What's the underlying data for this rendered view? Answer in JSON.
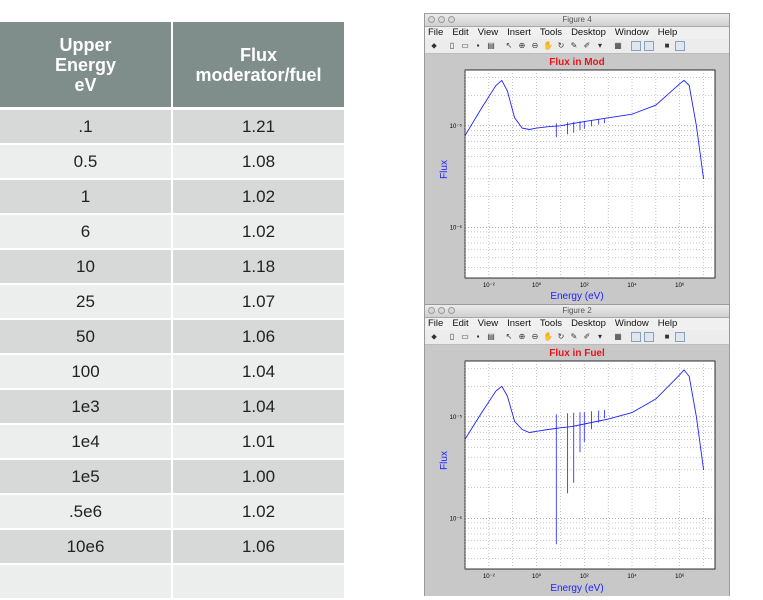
{
  "table": {
    "headers": [
      "Upper\nEnergy\neV",
      "Flux\nmoderator/fuel"
    ],
    "rows": [
      [
        ".1",
        "1.21"
      ],
      [
        "0.5",
        "1.08"
      ],
      [
        "1",
        "1.02"
      ],
      [
        "6",
        "1.02"
      ],
      [
        "10",
        "1.18"
      ],
      [
        "25",
        "1.07"
      ],
      [
        "50",
        "1.06"
      ],
      [
        "100",
        "1.04"
      ],
      [
        "1e3",
        "1.04"
      ],
      [
        "1e4",
        "1.01"
      ],
      [
        "1e5",
        "1.00"
      ],
      [
        ".5e6",
        "1.02"
      ],
      [
        "10e6",
        "1.06"
      ],
      [
        "",
        ""
      ]
    ]
  },
  "figure_top": {
    "window_title": "Figure 4",
    "menu": [
      "File",
      "Edit",
      "View",
      "Insert",
      "Tools",
      "Desktop",
      "Window",
      "Help"
    ],
    "plot_title": "Flux in Mod",
    "ylabel": "Flux",
    "xlabel": "Energy (eV)",
    "yticks": [
      "10⁻⁵",
      "10⁻⁶"
    ],
    "xticks": [
      "10⁻²",
      "10⁰",
      "10²",
      "10⁴",
      "10⁶"
    ]
  },
  "figure_bottom": {
    "window_title": "Figure 2",
    "menu": [
      "File",
      "Edit",
      "View",
      "Insert",
      "Tools",
      "Desktop",
      "Window",
      "Help"
    ],
    "plot_title": "Flux in Fuel",
    "ylabel": "Flux",
    "xlabel": "Energy (eV)",
    "yticks": [
      "10⁻⁵",
      "10⁻⁶"
    ],
    "xticks": [
      "10⁻²",
      "10⁰",
      "10²",
      "10⁴",
      "10⁶"
    ]
  },
  "colors": {
    "header_bg": "#7f8e8a",
    "row_odd": "#d6d9d7",
    "row_even": "#eceeed",
    "curve": "#1e22ff",
    "plot_title": "#e8141a"
  },
  "chart_data": [
    {
      "type": "line",
      "title": "Flux in Mod",
      "xlabel": "Energy (eV)",
      "ylabel": "Flux",
      "xscale": "log",
      "yscale": "log",
      "xlim": [
        0.001,
        30000000
      ],
      "grid": true,
      "series": [
        {
          "x": [
            0.001,
            0.005,
            0.02,
            0.035,
            0.06,
            0.12,
            0.25,
            0.5,
            1,
            3,
            10,
            30,
            100,
            1000,
            10000,
            100000,
            1000000,
            1500000,
            2500000,
            5000000,
            10000000
          ],
          "y": [
            8e-06,
            1.5e-05,
            2.5e-05,
            2.8e-05,
            2.2e-05,
            1.2e-05,
            9.5e-06,
            9.2e-06,
            9.5e-06,
            9.8e-06,
            1e-05,
            1.05e-05,
            1.1e-05,
            1.2e-05,
            1.3e-05,
            1.6e-05,
            2.6e-05,
            2.8e-05,
            2.5e-05,
            1e-05,
            3e-06
          ]
        }
      ]
    },
    {
      "type": "line",
      "title": "Flux in Fuel",
      "xlabel": "Energy (eV)",
      "ylabel": "Flux",
      "xscale": "log",
      "yscale": "log",
      "xlim": [
        0.001,
        30000000
      ],
      "grid": true,
      "series": [
        {
          "x": [
            0.001,
            0.005,
            0.02,
            0.035,
            0.06,
            0.12,
            0.25,
            0.5,
            1,
            3,
            10,
            30,
            100,
            1000,
            10000,
            100000,
            1000000,
            1500000,
            2500000,
            5000000,
            10000000
          ],
          "y": [
            6e-06,
            1.1e-05,
            1.8e-05,
            2e-05,
            1.6e-05,
            9e-06,
            7.5e-06,
            7e-06,
            7.2e-06,
            7.5e-06,
            7.8e-06,
            8e-06,
            8.5e-06,
            9.5e-06,
            1.1e-05,
            1.5e-05,
            2.6e-05,
            2.9e-05,
            2.5e-05,
            1e-05,
            3e-06
          ]
        }
      ]
    }
  ]
}
